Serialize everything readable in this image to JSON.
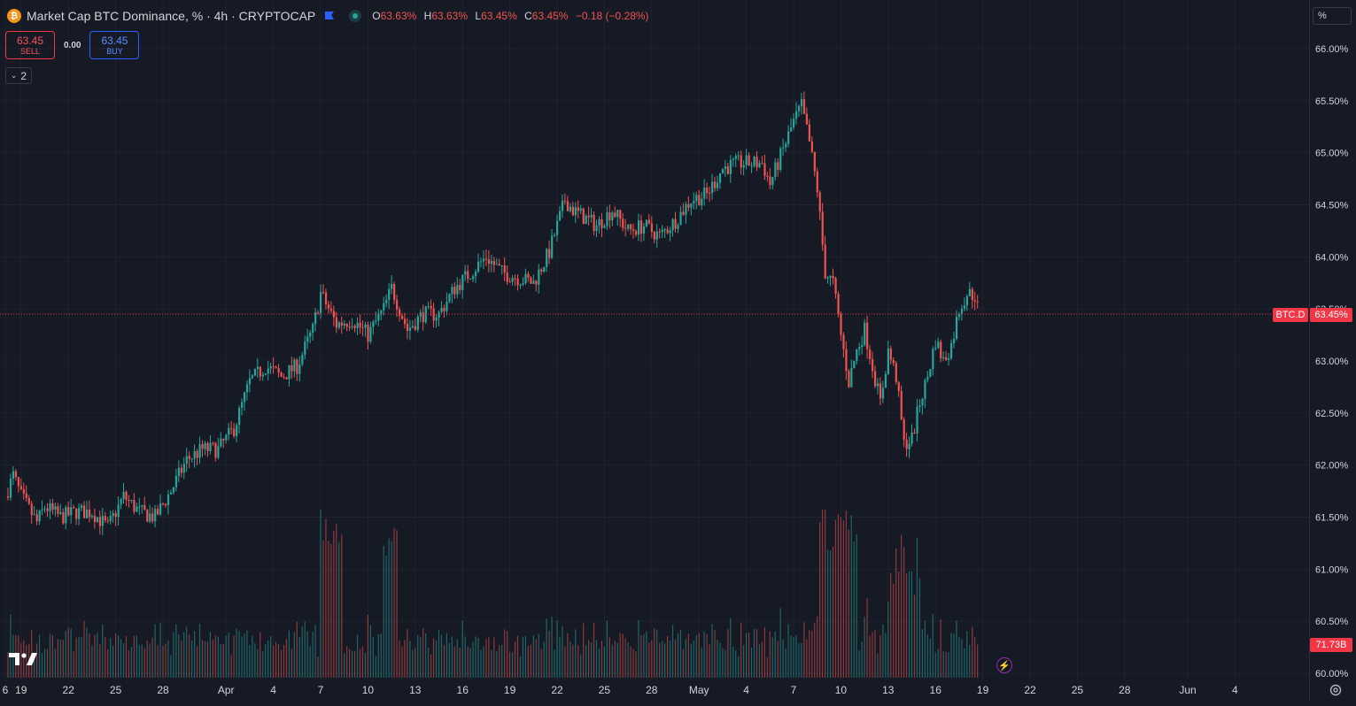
{
  "legend": {
    "title": "Market Cap BTC Dominance, % · 4h · CRYPTOCAP",
    "ohlc": [
      {
        "k": "O",
        "v": "63.63%"
      },
      {
        "k": "H",
        "v": "63.63%"
      },
      {
        "k": "L",
        "v": "63.45%"
      },
      {
        "k": "C",
        "v": "63.45%"
      },
      {
        "k": "",
        "v": "−0.18 (−0.28%)"
      }
    ]
  },
  "trade": {
    "sell_price": "63.45",
    "sell_label": "SELL",
    "spread": "0.00",
    "buy_price": "63.45",
    "buy_label": "BUY"
  },
  "indicators_count": "2",
  "price_scale": {
    "unit": "%",
    "symbol_tag": "BTC.D",
    "price_tag": "63.45%",
    "volume_tag": "71.73B"
  },
  "colors": {
    "background": "#161a25",
    "up": "#26a69a",
    "down": "#ef5350",
    "price_line": "#f23645",
    "grid": "#1f2330",
    "text": "#d1d4dc"
  },
  "chart_data": {
    "type": "candlestick",
    "series": "BTC Dominance",
    "unit": "%",
    "interval": "4h",
    "y_ticks": [
      "66.00%",
      "65.50%",
      "65.00%",
      "64.50%",
      "64.00%",
      "63.50%",
      "63.00%",
      "62.50%",
      "62.00%",
      "61.50%",
      "61.00%",
      "60.50%",
      "60.00%"
    ],
    "ylim": [
      60.0,
      66.0
    ],
    "x_ticks": [
      {
        "label": "6",
        "day": 0
      },
      {
        "label": "19",
        "day": 1
      },
      {
        "label": "22",
        "day": 4
      },
      {
        "label": "25",
        "day": 7
      },
      {
        "label": "28",
        "day": 10
      },
      {
        "label": "Apr",
        "day": 14
      },
      {
        "label": "4",
        "day": 17
      },
      {
        "label": "7",
        "day": 20
      },
      {
        "label": "10",
        "day": 23
      },
      {
        "label": "13",
        "day": 26
      },
      {
        "label": "16",
        "day": 29
      },
      {
        "label": "19",
        "day": 32
      },
      {
        "label": "22",
        "day": 35
      },
      {
        "label": "25",
        "day": 38
      },
      {
        "label": "28",
        "day": 41
      },
      {
        "label": "May",
        "day": 44
      },
      {
        "label": "4",
        "day": 47
      },
      {
        "label": "7",
        "day": 50
      },
      {
        "label": "10",
        "day": 53
      },
      {
        "label": "13",
        "day": 56
      },
      {
        "label": "16",
        "day": 59
      },
      {
        "label": "19",
        "day": 62
      },
      {
        "label": "22",
        "day": 65
      },
      {
        "label": "25",
        "day": 68
      },
      {
        "label": "28",
        "day": 71
      },
      {
        "label": "Jun",
        "day": 75
      },
      {
        "label": "4",
        "day": 78
      }
    ],
    "close_path": [
      [
        0.0,
        61.7
      ],
      [
        0.5,
        61.9
      ],
      [
        1.0,
        61.7
      ],
      [
        2.0,
        61.45
      ],
      [
        2.5,
        61.6
      ],
      [
        3.5,
        61.5
      ],
      [
        4.5,
        61.55
      ],
      [
        5.5,
        61.55
      ],
      [
        6.5,
        61.4
      ],
      [
        7.5,
        61.7
      ],
      [
        8.5,
        61.55
      ],
      [
        9.5,
        61.5
      ],
      [
        10.5,
        61.75
      ],
      [
        11.5,
        62.05
      ],
      [
        12.5,
        62.15
      ],
      [
        13.5,
        62.15
      ],
      [
        14.5,
        62.35
      ],
      [
        15.5,
        62.8
      ],
      [
        16.5,
        62.95
      ],
      [
        17.5,
        62.85
      ],
      [
        18.5,
        62.95
      ],
      [
        19.5,
        63.3
      ],
      [
        20.0,
        63.65
      ],
      [
        21.0,
        63.35
      ],
      [
        22.0,
        63.4
      ],
      [
        23.0,
        63.25
      ],
      [
        24.0,
        63.5
      ],
      [
        24.5,
        63.7
      ],
      [
        25.5,
        63.3
      ],
      [
        26.5,
        63.45
      ],
      [
        27.5,
        63.45
      ],
      [
        28.5,
        63.7
      ],
      [
        29.5,
        63.85
      ],
      [
        30.5,
        64.0
      ],
      [
        31.5,
        63.85
      ],
      [
        32.5,
        63.8
      ],
      [
        33.5,
        63.75
      ],
      [
        34.5,
        64.05
      ],
      [
        35.5,
        64.55
      ],
      [
        36.0,
        64.45
      ],
      [
        37.5,
        64.3
      ],
      [
        38.5,
        64.45
      ],
      [
        39.5,
        64.25
      ],
      [
        40.5,
        64.3
      ],
      [
        41.5,
        64.2
      ],
      [
        42.5,
        64.35
      ],
      [
        43.5,
        64.55
      ],
      [
        44.5,
        64.6
      ],
      [
        45.5,
        64.85
      ],
      [
        46.5,
        64.9
      ],
      [
        47.5,
        64.9
      ],
      [
        48.0,
        64.9
      ],
      [
        48.5,
        64.7
      ],
      [
        49.5,
        65.1
      ],
      [
        50.0,
        65.3
      ],
      [
        50.5,
        65.45
      ],
      [
        51.0,
        65.1
      ],
      [
        51.5,
        64.65
      ],
      [
        52.0,
        63.85
      ],
      [
        52.5,
        63.75
      ],
      [
        53.0,
        63.25
      ],
      [
        53.5,
        62.8
      ],
      [
        54.0,
        63.1
      ],
      [
        54.5,
        63.3
      ],
      [
        55.0,
        62.95
      ],
      [
        55.5,
        62.6
      ],
      [
        56.0,
        63.1
      ],
      [
        56.5,
        62.85
      ],
      [
        57.0,
        62.2
      ],
      [
        57.5,
        62.25
      ],
      [
        58.0,
        62.6
      ],
      [
        58.5,
        62.85
      ],
      [
        59.0,
        63.2
      ],
      [
        59.5,
        63.0
      ],
      [
        60.0,
        63.15
      ],
      [
        60.5,
        63.5
      ],
      [
        61.0,
        63.65
      ],
      [
        61.5,
        63.63
      ],
      [
        61.75,
        63.45
      ]
    ],
    "volume": {
      "unit": "B",
      "last": 71.73
    }
  }
}
